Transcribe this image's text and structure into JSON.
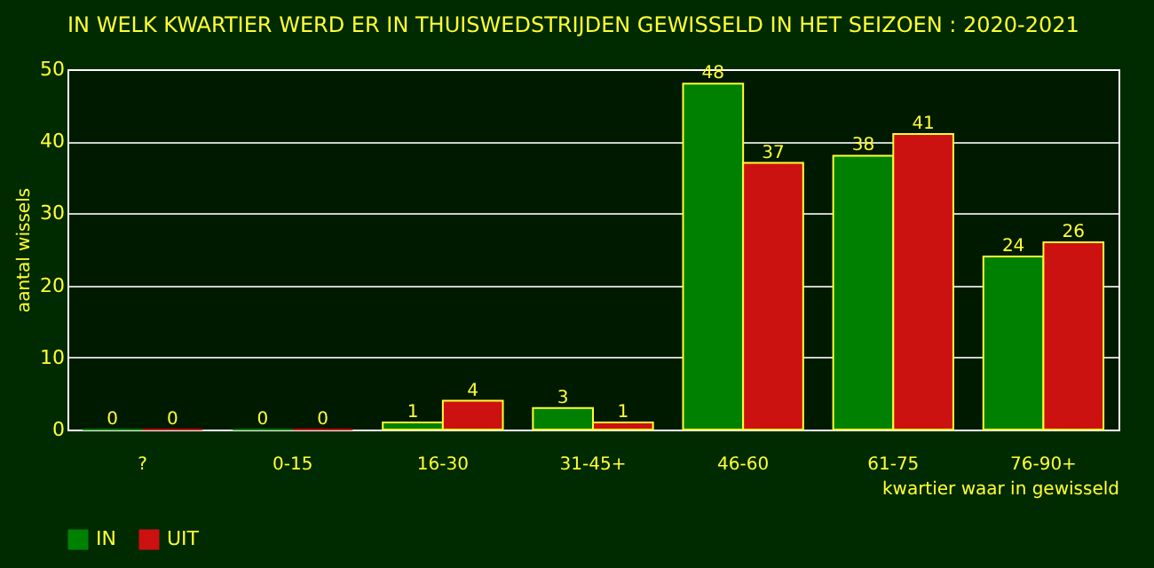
{
  "chart_data": {
    "type": "bar",
    "title": "IN WELK KWARTIER WERD ER IN THUISWEDSTRIJDEN GEWISSELD IN HET SEIZOEN : 2020-2021",
    "xlabel": "kwartier waar in gewisseld",
    "ylabel": "aantal wissels",
    "categories": [
      "?",
      "0-15",
      "16-30",
      "31-45+",
      "46-60",
      "61-75",
      "76-90+"
    ],
    "series": [
      {
        "name": "IN",
        "color": "#008000",
        "values": [
          0,
          0,
          1,
          3,
          48,
          38,
          24
        ]
      },
      {
        "name": "UIT",
        "color": "#cc1111",
        "values": [
          0,
          0,
          4,
          1,
          37,
          41,
          26
        ]
      }
    ],
    "ylim": [
      0,
      50
    ],
    "yticks": [
      0,
      10,
      20,
      30,
      40,
      50
    ],
    "grid": "y",
    "legend": "bottom",
    "data_labels": true
  }
}
